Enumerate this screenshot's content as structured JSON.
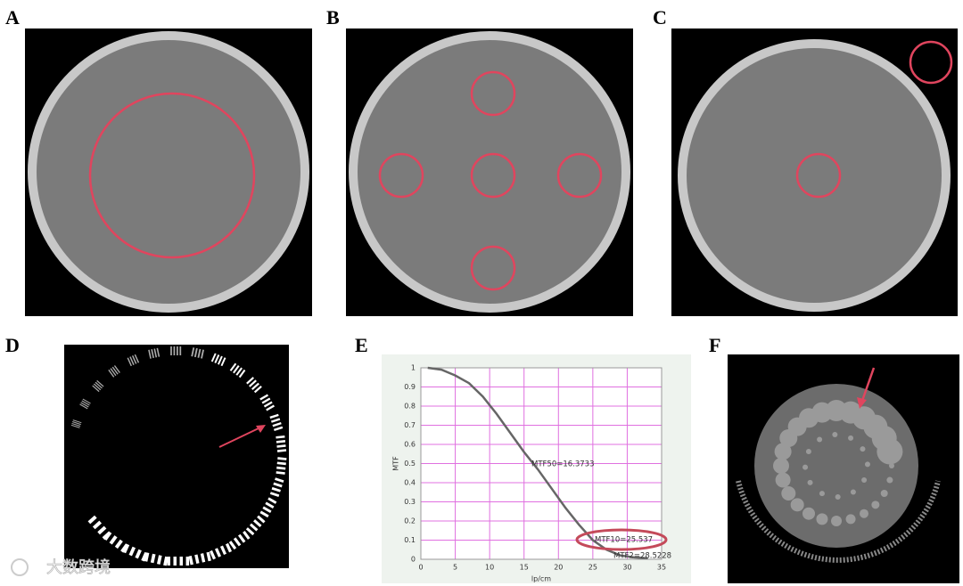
{
  "panels": [
    "A",
    "B",
    "C",
    "D",
    "E",
    "F"
  ],
  "watermark": "大数跨境",
  "chart_data": {
    "type": "line",
    "xlabel": "lp/cm",
    "ylabel": "MTF",
    "x": [
      1,
      3,
      5,
      7,
      9,
      11,
      13,
      15,
      17,
      19,
      21,
      23,
      25,
      27,
      29,
      31,
      33
    ],
    "series": [
      {
        "name": "MTF",
        "color": "#666666",
        "values": [
          1,
          0.99,
          0.96,
          0.92,
          0.85,
          0.76,
          0.66,
          0.56,
          0.47,
          0.37,
          0.27,
          0.18,
          0.1,
          0.05,
          0.02,
          0.01,
          0.005
        ]
      }
    ],
    "annotations": [
      "MTF50=16.3733",
      "MTF10=25.537",
      "MTF2=28.5228"
    ],
    "xlim": [
      0,
      35
    ],
    "ylim": [
      0,
      1
    ],
    "xticks": [
      0,
      5,
      10,
      15,
      20,
      25,
      30,
      35
    ],
    "yticks": [
      0,
      0.1,
      0.2,
      0.3,
      0.4,
      0.5,
      0.6,
      0.7,
      0.8,
      0.9,
      1
    ],
    "grid": true,
    "grid_color": "#e070e0"
  }
}
